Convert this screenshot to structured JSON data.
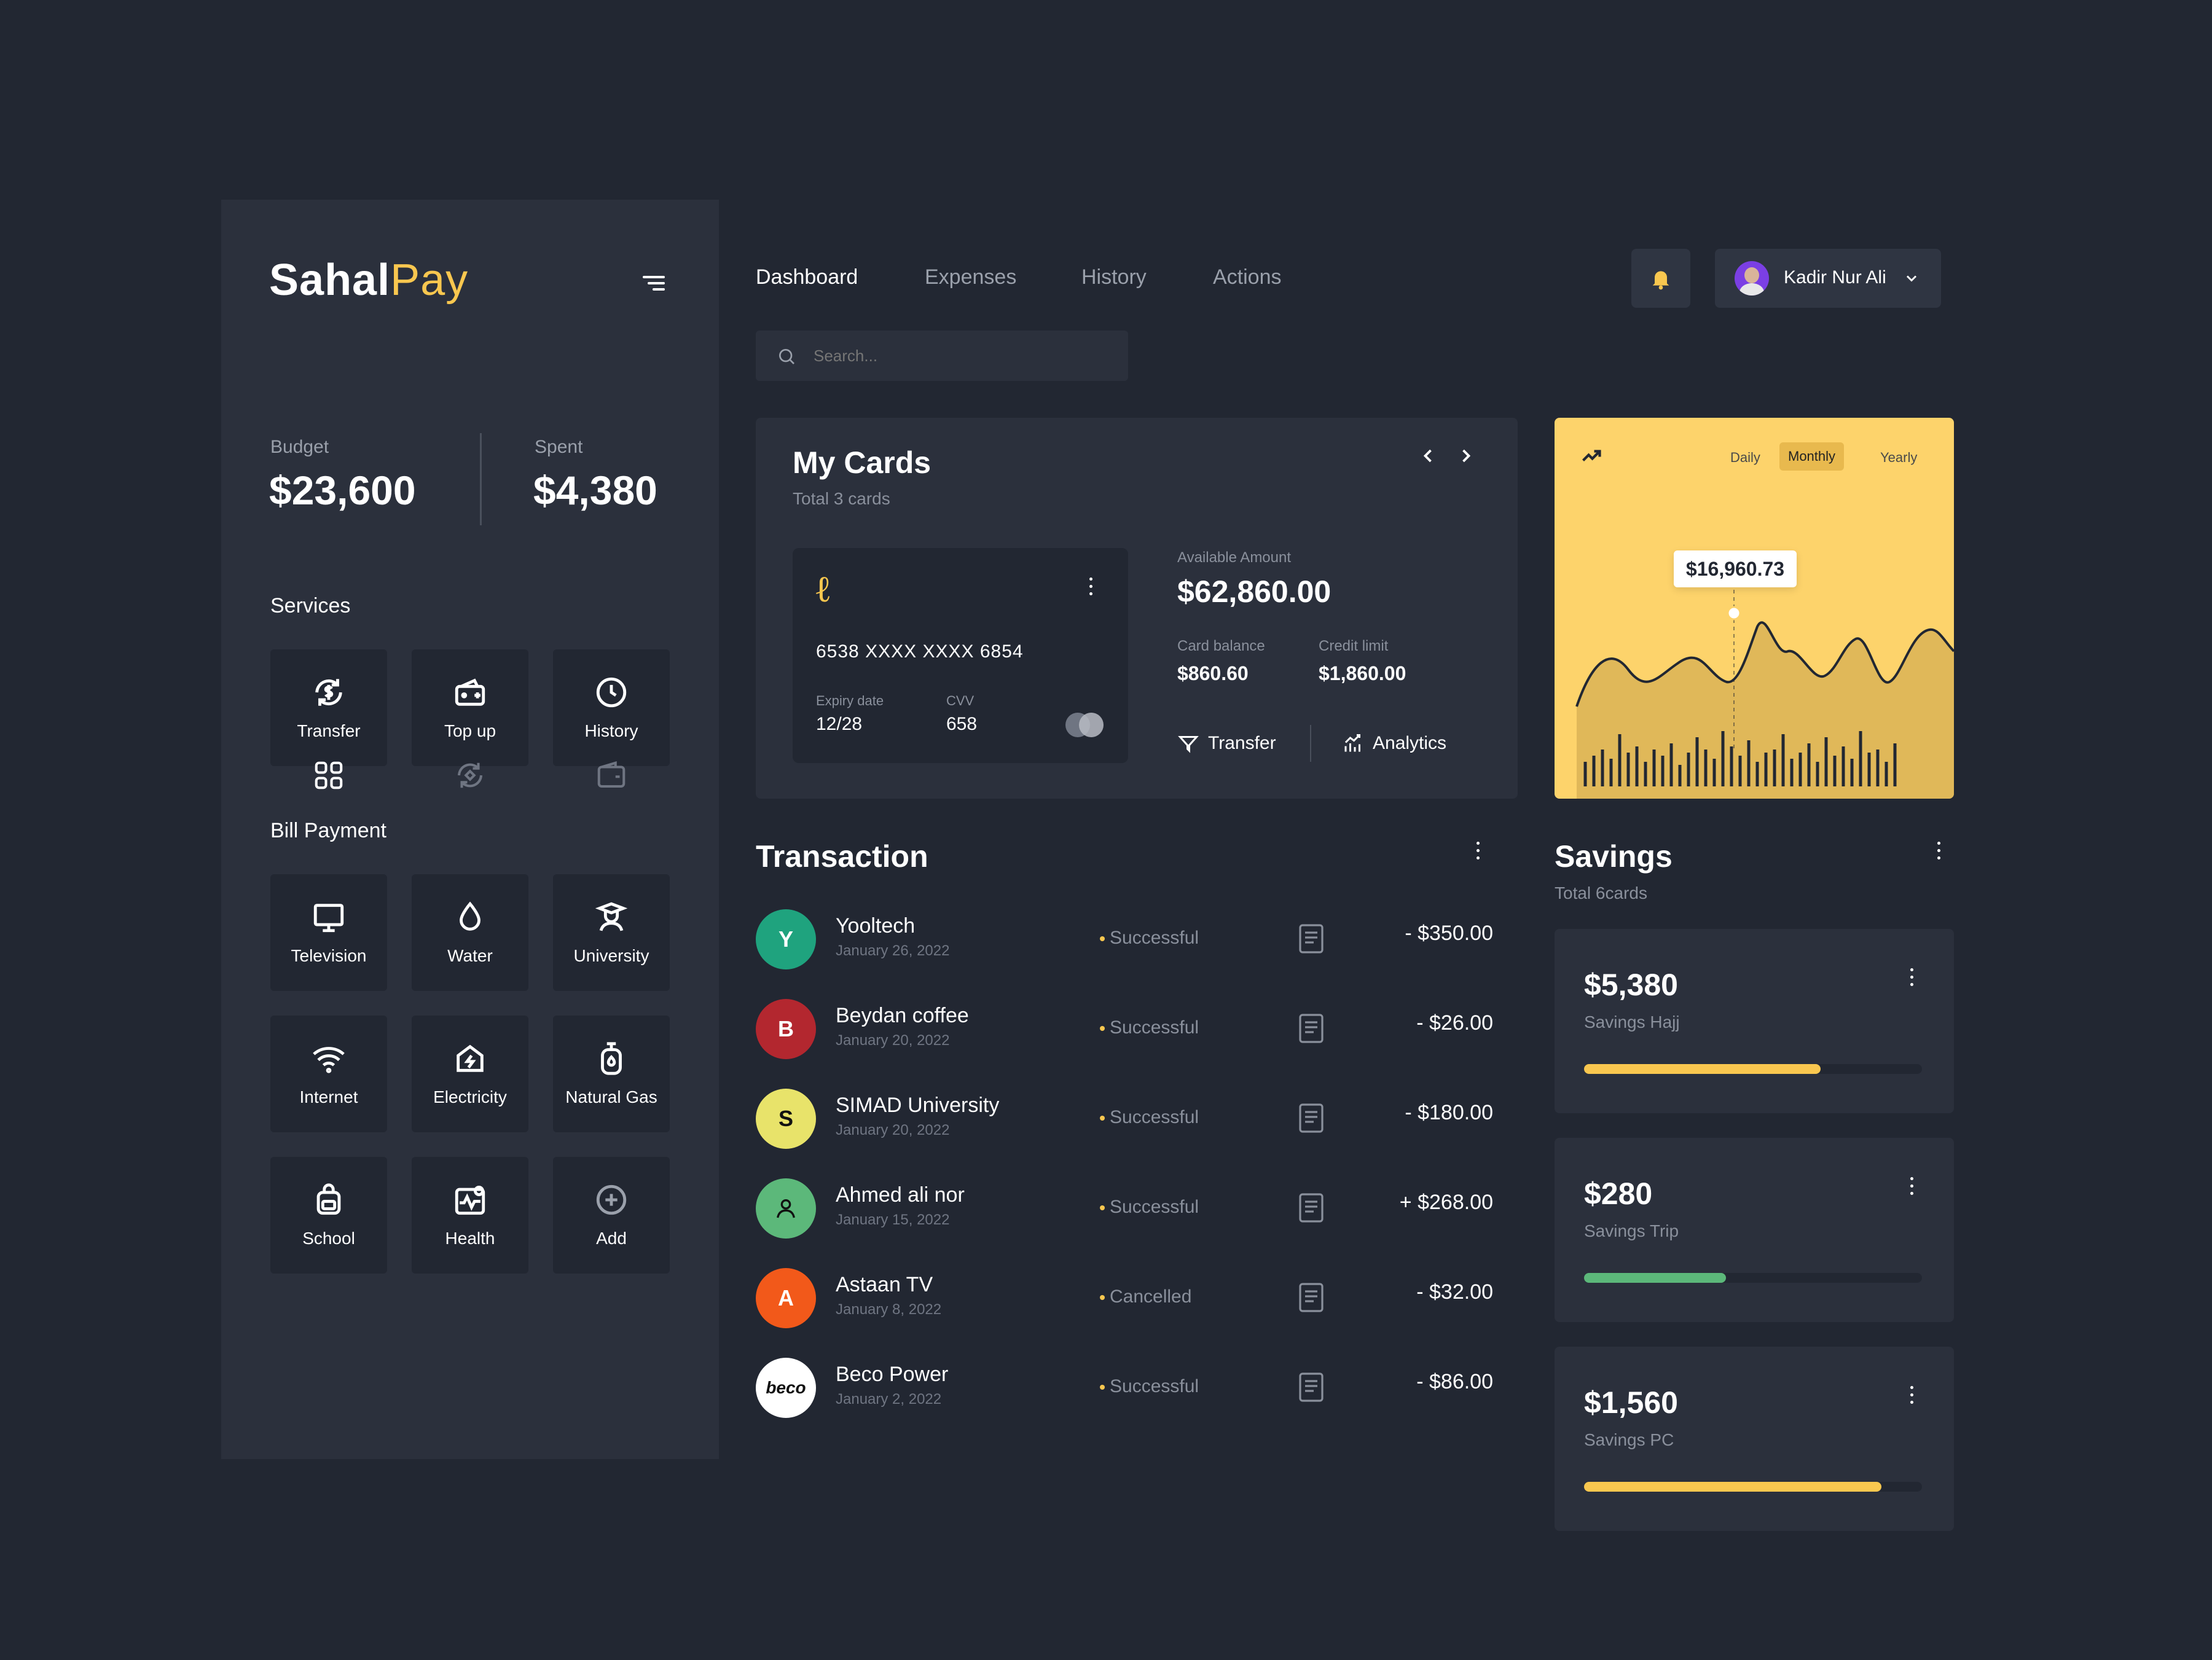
{
  "brand": {
    "name_left": "Sahal",
    "name_right": "Pay"
  },
  "budget": {
    "label": "Budget",
    "value": "$23,600"
  },
  "spent": {
    "label": "Spent",
    "value": "$4,380"
  },
  "services": {
    "title": "Services",
    "items": [
      {
        "label": "Transfer",
        "icon": "transfer-icon"
      },
      {
        "label": "Top up",
        "icon": "wallet-plus-icon"
      },
      {
        "label": "History",
        "icon": "clock-icon"
      }
    ]
  },
  "bill": {
    "title": "Bill Payment",
    "items": [
      {
        "label": "Television",
        "icon": "tv-icon"
      },
      {
        "label": "Water",
        "icon": "water-drop-icon"
      },
      {
        "label": "University",
        "icon": "graduate-icon"
      },
      {
        "label": "Internet",
        "icon": "wifi-icon"
      },
      {
        "label": "Electricity",
        "icon": "power-house-icon"
      },
      {
        "label": "Natural Gas",
        "icon": "gas-cylinder-icon"
      },
      {
        "label": "School",
        "icon": "backpack-icon"
      },
      {
        "label": "Health",
        "icon": "health-icon"
      },
      {
        "label": "Add",
        "icon": "plus-circle-icon"
      }
    ]
  },
  "nav": {
    "tabs": [
      "Dashboard",
      "Expenses",
      "History",
      "Actions"
    ]
  },
  "search": {
    "placeholder": "Search..."
  },
  "user": {
    "name": "Kadir Nur Ali"
  },
  "cards": {
    "title": "My Cards",
    "subtitle": "Total 3 cards",
    "number": "6538 XXXX XXXX 6854",
    "expiry_label": "Expiry date",
    "expiry": "12/28",
    "cvv_label": "CVV",
    "cvv": "658",
    "available_label": "Available Amount",
    "available": "$62,860.00",
    "balance_label": "Card balance",
    "balance": "$860.60",
    "limit_label": "Credit limit",
    "limit": "$1,860.00",
    "transfer": "Transfer",
    "analytics": "Analytics"
  },
  "chart": {
    "tabs": [
      "Daily",
      "Monthly",
      "Yearly"
    ],
    "active": "Monthly",
    "tooltip": "$16,960.73"
  },
  "transactions": {
    "title": "Transaction",
    "items": [
      {
        "name": "Yooltech",
        "date": "January 26, 2022",
        "status": "Successful",
        "amount": "- $350.00",
        "color": "#1fa37e",
        "mark": "Y"
      },
      {
        "name": "Beydan coffee",
        "date": "January 20, 2022",
        "status": "Successful",
        "amount": "- $26.00",
        "color": "#b3272f",
        "mark": "B"
      },
      {
        "name": "SIMAD University",
        "date": "January 20, 2022",
        "status": "Successful",
        "amount": "- $180.00",
        "color": "#e8e36a",
        "mark": "S"
      },
      {
        "name": "Ahmed ali nor",
        "date": "January 15, 2022",
        "status": "Successful",
        "amount": "+ $268.00",
        "color": "#5cb87a",
        "mark": ""
      },
      {
        "name": "Astaan TV",
        "date": "January 8, 2022",
        "status": "Cancelled",
        "amount": "- $32.00",
        "color": "#f2591a",
        "mark": "A"
      },
      {
        "name": "Beco Power",
        "date": "January 2, 2022",
        "status": "Successful",
        "amount": "- $86.00",
        "color": "#ffffff",
        "mark": "beco"
      }
    ]
  },
  "savings": {
    "title": "Savings",
    "subtitle": "Total 6cards",
    "items": [
      {
        "amount": "$5,380",
        "name": "Savings Hajj",
        "progress": 0.7,
        "color": "#f9c74f"
      },
      {
        "amount": "$280",
        "name": "Savings Trip",
        "progress": 0.42,
        "color": "#5cb87a"
      },
      {
        "amount": "$1,560",
        "name": "Savings PC",
        "progress": 0.88,
        "color": "#f9c74f"
      }
    ]
  }
}
